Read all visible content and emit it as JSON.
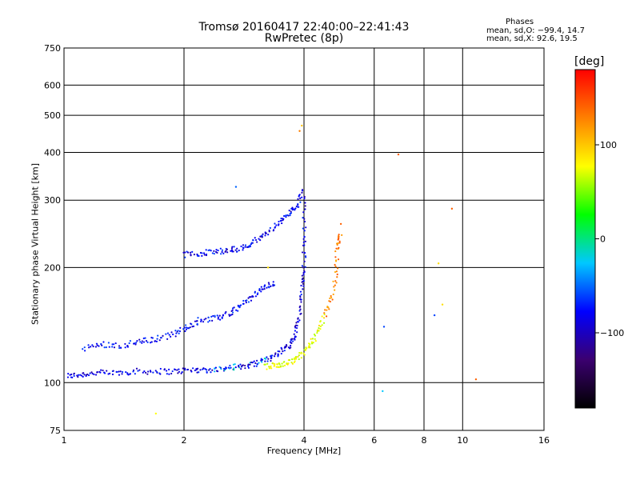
{
  "chart_data": {
    "type": "scatter",
    "title": "Tromsø 20160417 22:40:00–22:41:43",
    "subtitle": "RwPretec (8p)",
    "xlabel": "Frequency [MHz]",
    "ylabel": "Stationary phase Virtual Height [km]",
    "x_scale": "log",
    "y_scale": "log",
    "xlim": [
      1,
      16
    ],
    "ylim": [
      75,
      750
    ],
    "x_ticks": [
      1,
      2,
      4,
      6,
      8,
      10,
      16
    ],
    "y_ticks": [
      75,
      100,
      200,
      300,
      400,
      500,
      600,
      750
    ],
    "grid": true,
    "stats": {
      "heading": "Phases",
      "o_mode": "mean, sd,O: −99.4, 14.7",
      "x_mode": "mean, sd,X:  92.6, 19.5"
    },
    "colorbar": {
      "unit": "[deg]",
      "range": [
        -180,
        180
      ],
      "ticks": [
        100,
        0,
        -100
      ],
      "colors": [
        "#000000",
        "#3b0070",
        "#0000ff",
        "#00c8ff",
        "#00ff00",
        "#ffff00",
        "#ff8000",
        "#ff0000"
      ]
    },
    "series": [
      {
        "points": [
          [
            1.02,
            104
          ],
          [
            1.1,
            105
          ],
          [
            1.2,
            106
          ],
          [
            1.35,
            106
          ],
          [
            1.5,
            107
          ],
          [
            1.7,
            107
          ],
          [
            1.9,
            107
          ],
          [
            2.1,
            108
          ],
          [
            2.3,
            108
          ],
          [
            2.5,
            109
          ],
          [
            2.7,
            110
          ],
          [
            2.9,
            111
          ],
          [
            3.1,
            113
          ],
          [
            3.3,
            116
          ],
          [
            3.5,
            120
          ],
          [
            3.7,
            126
          ],
          [
            3.8,
            135
          ],
          [
            3.9,
            150
          ],
          [
            3.95,
            175
          ],
          [
            4.0,
            200
          ],
          [
            4.0,
            240
          ],
          [
            4.02,
            310
          ]
        ]
      },
      {
        "points": [
          [
            1.12,
            123
          ],
          [
            1.25,
            126
          ],
          [
            1.4,
            125
          ],
          [
            1.55,
            128
          ],
          [
            1.7,
            130
          ],
          [
            1.9,
            134
          ],
          [
            2.05,
            140
          ],
          [
            2.2,
            146
          ],
          [
            2.4,
            147
          ],
          [
            2.6,
            152
          ],
          [
            2.8,
            160
          ],
          [
            3.0,
            170
          ],
          [
            3.2,
            178
          ],
          [
            3.4,
            182
          ]
        ]
      },
      {
        "points": [
          [
            2.0,
            216
          ],
          [
            2.2,
            218
          ],
          [
            2.4,
            220
          ],
          [
            2.6,
            222
          ],
          [
            2.8,
            225
          ],
          [
            3.0,
            233
          ],
          [
            3.2,
            245
          ],
          [
            3.45,
            260
          ],
          [
            3.65,
            275
          ],
          [
            3.85,
            290
          ],
          [
            3.95,
            322
          ]
        ]
      },
      {
        "points": [
          [
            3.2,
            110
          ],
          [
            3.4,
            111
          ],
          [
            3.6,
            112
          ],
          [
            3.8,
            115
          ],
          [
            4.0,
            120
          ],
          [
            4.2,
            128
          ],
          [
            4.4,
            140
          ],
          [
            4.6,
            158
          ],
          [
            4.8,
            185
          ],
          [
            4.85,
            225
          ],
          [
            4.95,
            245
          ]
        ]
      },
      {
        "points": [
          [
            3.9,
            455
          ],
          [
            3.95,
            470
          ],
          [
            2.7,
            325
          ],
          [
            6.9,
            395
          ],
          [
            9.4,
            285
          ],
          [
            4.95,
            260
          ],
          [
            6.35,
            140
          ],
          [
            8.5,
            150
          ],
          [
            8.9,
            160
          ],
          [
            10.8,
            102
          ],
          [
            6.3,
            95
          ],
          [
            8.7,
            205
          ],
          [
            1.7,
            83
          ],
          [
            3.25,
            200
          ]
        ]
      }
    ]
  }
}
